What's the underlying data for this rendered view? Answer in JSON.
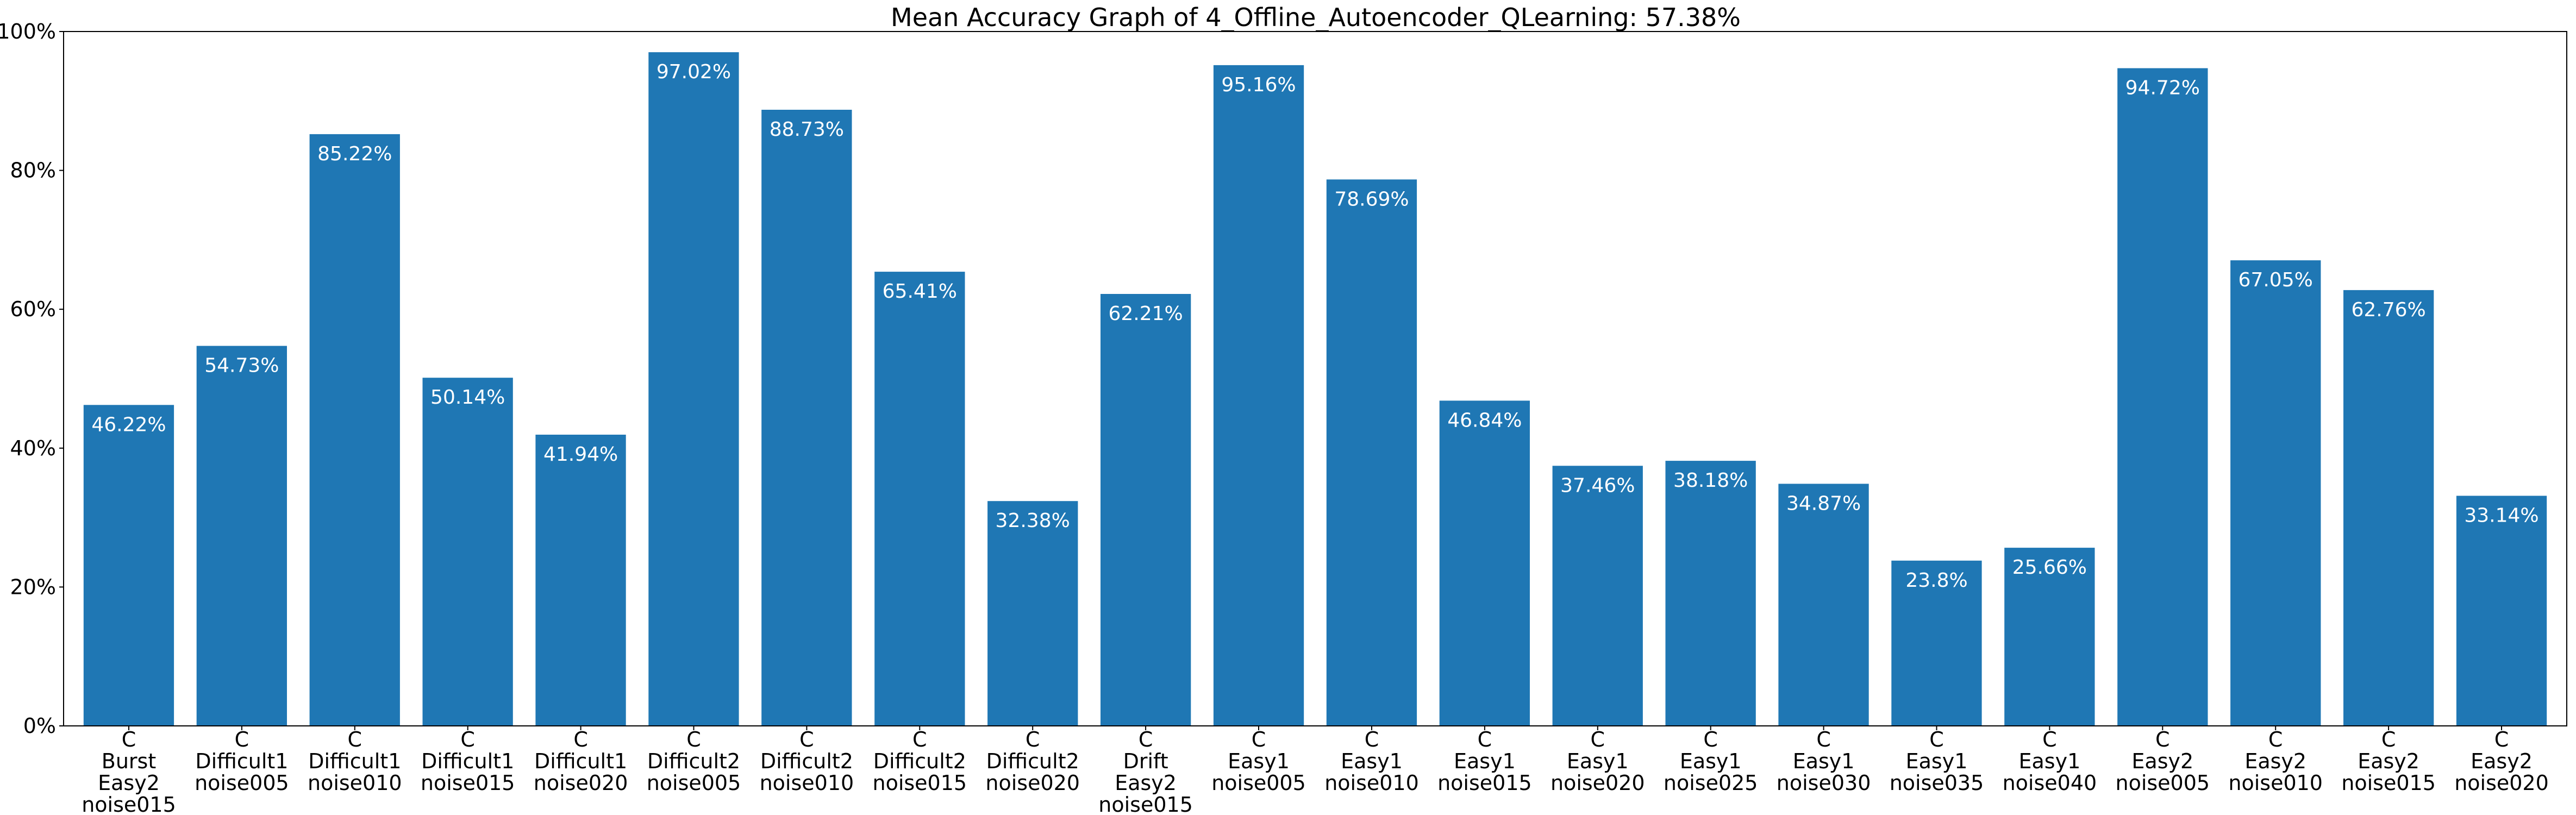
{
  "chart_data": {
    "type": "bar",
    "title": "Mean Accuracy Graph of 4_Offline_Autoencoder_QLearning: 57.38%",
    "xlabel": "",
    "ylabel": "",
    "ylim": [
      0,
      100
    ],
    "y_ticks": [
      0,
      20,
      40,
      60,
      80,
      100
    ],
    "y_tick_format": "%",
    "grid": false,
    "legend": "none",
    "bar_color": "#1f77b4",
    "bar_label_color": "#ffffff",
    "categories": [
      [
        "C",
        "Burst",
        "Easy2",
        "noise015"
      ],
      [
        "C",
        "Difficult1",
        "noise005"
      ],
      [
        "C",
        "Difficult1",
        "noise010"
      ],
      [
        "C",
        "Difficult1",
        "noise015"
      ],
      [
        "C",
        "Difficult1",
        "noise020"
      ],
      [
        "C",
        "Difficult2",
        "noise005"
      ],
      [
        "C",
        "Difficult2",
        "noise010"
      ],
      [
        "C",
        "Difficult2",
        "noise015"
      ],
      [
        "C",
        "Difficult2",
        "noise020"
      ],
      [
        "C",
        "Drift",
        "Easy2",
        "noise015"
      ],
      [
        "C",
        "Easy1",
        "noise005"
      ],
      [
        "C",
        "Easy1",
        "noise010"
      ],
      [
        "C",
        "Easy1",
        "noise015"
      ],
      [
        "C",
        "Easy1",
        "noise020"
      ],
      [
        "C",
        "Easy1",
        "noise025"
      ],
      [
        "C",
        "Easy1",
        "noise030"
      ],
      [
        "C",
        "Easy1",
        "noise035"
      ],
      [
        "C",
        "Easy1",
        "noise040"
      ],
      [
        "C",
        "Easy2",
        "noise005"
      ],
      [
        "C",
        "Easy2",
        "noise010"
      ],
      [
        "C",
        "Easy2",
        "noise015"
      ],
      [
        "C",
        "Easy2",
        "noise020"
      ]
    ],
    "values": [
      46.22,
      54.73,
      85.22,
      50.14,
      41.94,
      97.02,
      88.73,
      65.41,
      32.38,
      62.21,
      95.16,
      78.69,
      46.84,
      37.46,
      38.18,
      34.87,
      23.8,
      25.66,
      94.72,
      67.05,
      62.76,
      33.14
    ],
    "value_labels": [
      "46.22%",
      "54.73%",
      "85.22%",
      "50.14%",
      "41.94%",
      "97.02%",
      "88.73%",
      "65.41%",
      "32.38%",
      "62.21%",
      "95.16%",
      "78.69%",
      "46.84%",
      "37.46%",
      "38.18%",
      "34.87%",
      "23.8%",
      "25.66%",
      "94.72%",
      "67.05%",
      "62.76%",
      "33.14%"
    ]
  }
}
